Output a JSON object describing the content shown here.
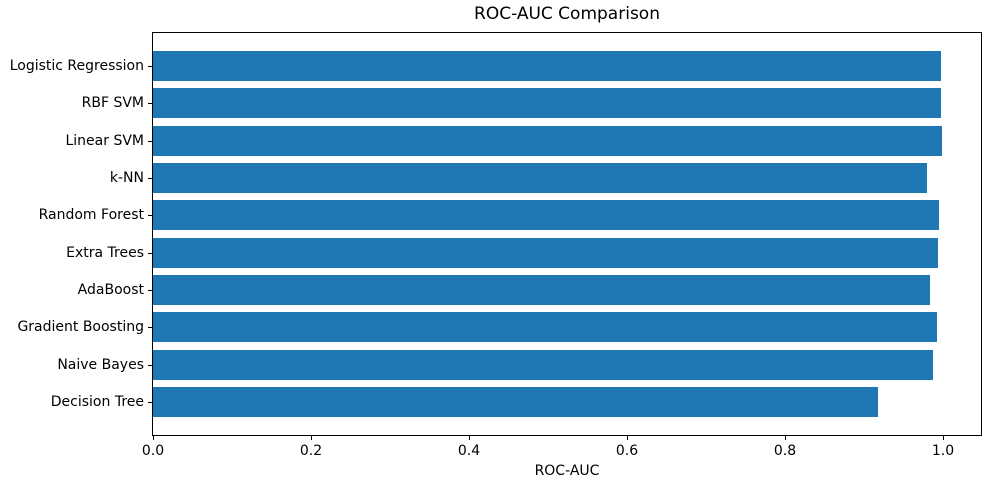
{
  "chart_data": {
    "type": "bar",
    "orientation": "horizontal",
    "title": "ROC-AUC Comparison",
    "xlabel": "ROC-AUC",
    "ylabel": "",
    "categories": [
      "Logistic Regression",
      "RBF SVM",
      "Linear SVM",
      "k-NN",
      "Random Forest",
      "Extra Trees",
      "AdaBoost",
      "Gradient Boosting",
      "Naive Bayes",
      "Decision Tree"
    ],
    "values": [
      0.997,
      0.997,
      0.998,
      0.98,
      0.995,
      0.994,
      0.983,
      0.992,
      0.987,
      0.917
    ],
    "xlim": [
      0,
      1.048
    ],
    "xticks": [
      0.0,
      0.2,
      0.4,
      0.6,
      0.8,
      1.0
    ],
    "xtick_labels": [
      "0.0",
      "0.2",
      "0.4",
      "0.6",
      "0.8",
      "1.0"
    ],
    "bar_color": "#1f77b4",
    "grid": false,
    "legend": "none",
    "background_color": "#ffffff",
    "axis_color": "#000000"
  }
}
